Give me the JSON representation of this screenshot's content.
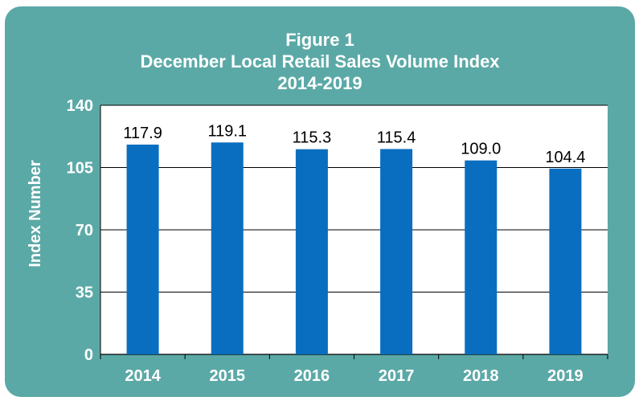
{
  "colors": {
    "frame_background": "#5ba9a7",
    "plot_background": "#ffffff",
    "bar": "#0a6ec0",
    "gridline": "#000000",
    "axis_text": "#ffffff",
    "label_text": "#000000"
  },
  "chart_data": {
    "type": "bar",
    "title": "Figure 1",
    "subtitle": "December Local Retail Sales Volume Index",
    "period": "2014-2019",
    "ylabel": "Index Number",
    "xlabel": "",
    "ylim": [
      0,
      140
    ],
    "yticks": [
      0,
      35,
      70,
      105,
      140
    ],
    "grid": true,
    "legend": "none",
    "categories": [
      "2014",
      "2015",
      "2016",
      "2017",
      "2018",
      "2019"
    ],
    "values": [
      117.9,
      119.1,
      115.3,
      115.4,
      109.0,
      104.4
    ],
    "data_labels": [
      "117.9",
      "119.1",
      "115.3",
      "115.4",
      "109.0",
      "104.4"
    ]
  }
}
